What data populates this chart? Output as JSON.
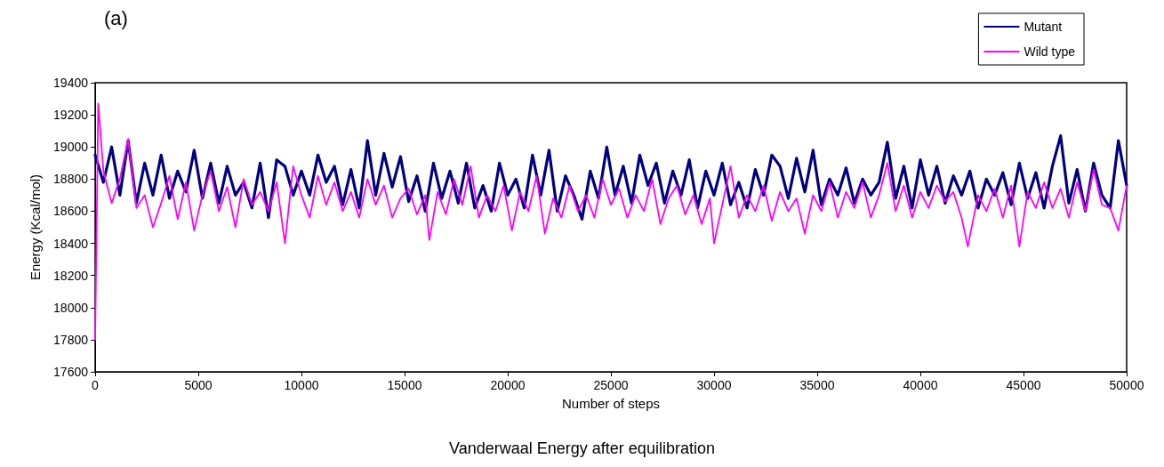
{
  "chart_data": {
    "type": "line",
    "title": "(a)",
    "xlabel": "Number of steps",
    "ylabel": "Energy (Kcal/mol)",
    "annotations": [
      "Vanderwaal Energy after equilibration"
    ],
    "xlim": [
      0,
      50000
    ],
    "xticks": [
      0,
      5000,
      10000,
      15000,
      20000,
      25000,
      30000,
      35000,
      40000,
      45000,
      50000
    ],
    "ylim": [
      17600,
      19400
    ],
    "yticks": [
      17600,
      17800,
      18000,
      18200,
      18400,
      18600,
      18800,
      19000,
      19200,
      19400
    ],
    "grid": false,
    "legend": "top right",
    "marker": "none",
    "line_style": "solid",
    "series": [
      {
        "name": "Mutant",
        "color": "#000080",
        "x": [
          0,
          400,
          800,
          1200,
          1600,
          2000,
          2400,
          2800,
          3200,
          3600,
          4000,
          4400,
          4800,
          5200,
          5600,
          6000,
          6400,
          6800,
          7200,
          7600,
          8000,
          8400,
          8800,
          9200,
          9600,
          10000,
          10400,
          10800,
          11200,
          11600,
          12000,
          12400,
          12800,
          13200,
          13600,
          14000,
          14400,
          14800,
          15200,
          15600,
          16000,
          16400,
          16800,
          17200,
          17600,
          18000,
          18400,
          18800,
          19200,
          19600,
          20000,
          20400,
          20800,
          21200,
          21600,
          22000,
          22400,
          22800,
          23200,
          23600,
          24000,
          24400,
          24800,
          25200,
          25600,
          26000,
          26400,
          26800,
          27200,
          27600,
          28000,
          28400,
          28800,
          29200,
          29600,
          30000,
          30400,
          30800,
          31200,
          31600,
          32000,
          32400,
          32800,
          33200,
          33600,
          34000,
          34400,
          34800,
          35200,
          35600,
          36000,
          36400,
          36800,
          37200,
          37600,
          38000,
          38400,
          38800,
          39200,
          39600,
          40000,
          40400,
          40800,
          41200,
          41600,
          42000,
          42400,
          42800,
          43200,
          43600,
          44000,
          44400,
          44800,
          45200,
          45600,
          46000,
          46400,
          46800,
          47200,
          47600,
          48000,
          48400,
          48800,
          49200,
          49600,
          50000
        ],
        "values": [
          18950,
          18780,
          19000,
          18700,
          19040,
          18650,
          18900,
          18700,
          18950,
          18680,
          18850,
          18720,
          18980,
          18680,
          18900,
          18650,
          18880,
          18700,
          18780,
          18620,
          18900,
          18560,
          18920,
          18880,
          18700,
          18850,
          18700,
          18950,
          18780,
          18880,
          18640,
          18860,
          18620,
          19040,
          18700,
          18960,
          18750,
          18940,
          18660,
          18820,
          18600,
          18900,
          18680,
          18850,
          18650,
          18900,
          18620,
          18760,
          18600,
          18900,
          18700,
          18800,
          18620,
          18950,
          18700,
          18980,
          18600,
          18820,
          18700,
          18550,
          18850,
          18680,
          19000,
          18700,
          18880,
          18650,
          18950,
          18760,
          18900,
          18650,
          18850,
          18700,
          18920,
          18620,
          18850,
          18700,
          18900,
          18640,
          18780,
          18620,
          18860,
          18700,
          18950,
          18880,
          18680,
          18930,
          18720,
          18980,
          18640,
          18800,
          18700,
          18870,
          18650,
          18800,
          18700,
          18780,
          19030,
          18680,
          18880,
          18620,
          18920,
          18700,
          18880,
          18650,
          18820,
          18700,
          18850,
          18620,
          18800,
          18700,
          18840,
          18640,
          18900,
          18680,
          18840,
          18620,
          18880,
          19070,
          18650,
          18860,
          18600,
          18900,
          18700,
          18620,
          19040,
          18760
        ]
      },
      {
        "name": "Wild type",
        "color": "#ff00ff",
        "x": [
          0,
          150,
          400,
          800,
          1200,
          1600,
          2000,
          2400,
          2800,
          3200,
          3600,
          4000,
          4400,
          4800,
          5200,
          5600,
          6000,
          6400,
          6800,
          7200,
          7600,
          8000,
          8400,
          8800,
          9200,
          9600,
          10000,
          10400,
          10800,
          11200,
          11600,
          12000,
          12400,
          12800,
          13200,
          13600,
          14000,
          14400,
          14800,
          15200,
          15600,
          16000,
          16200,
          16600,
          17000,
          17400,
          17800,
          18200,
          18600,
          19000,
          19400,
          19800,
          20200,
          20600,
          21000,
          21400,
          21800,
          22200,
          22600,
          23000,
          23400,
          23800,
          24200,
          24600,
          25000,
          25400,
          25800,
          26200,
          26600,
          27000,
          27400,
          27800,
          28200,
          28600,
          29000,
          29400,
          29800,
          30000,
          30400,
          30800,
          31200,
          31600,
          32000,
          32400,
          32800,
          33200,
          33600,
          34000,
          34400,
          34800,
          35200,
          35600,
          36000,
          36400,
          36800,
          37200,
          37600,
          38000,
          38400,
          38800,
          39200,
          39600,
          40000,
          40400,
          40800,
          41200,
          41600,
          42000,
          42300,
          42800,
          43200,
          43600,
          44000,
          44400,
          44800,
          45200,
          45600,
          46000,
          46400,
          46800,
          47200,
          47600,
          48000,
          48400,
          48800,
          49200,
          49600,
          50000
        ],
        "values": [
          17800,
          19270,
          18850,
          18650,
          18800,
          19050,
          18620,
          18700,
          18500,
          18650,
          18820,
          18550,
          18780,
          18480,
          18700,
          18850,
          18600,
          18750,
          18500,
          18800,
          18640,
          18720,
          18600,
          18780,
          18400,
          18880,
          18700,
          18560,
          18820,
          18640,
          18780,
          18600,
          18720,
          18560,
          18800,
          18640,
          18760,
          18560,
          18680,
          18740,
          18580,
          18700,
          18420,
          18720,
          18580,
          18800,
          18640,
          18880,
          18560,
          18700,
          18600,
          18760,
          18480,
          18720,
          18600,
          18820,
          18460,
          18680,
          18560,
          18760,
          18600,
          18700,
          18560,
          18800,
          18640,
          18740,
          18560,
          18700,
          18600,
          18800,
          18520,
          18680,
          18760,
          18580,
          18700,
          18520,
          18680,
          18400,
          18640,
          18880,
          18560,
          18700,
          18600,
          18760,
          18540,
          18720,
          18600,
          18680,
          18460,
          18700,
          18600,
          18780,
          18560,
          18720,
          18620,
          18780,
          18560,
          18700,
          18900,
          18600,
          18760,
          18560,
          18720,
          18620,
          18760,
          18660,
          18720,
          18560,
          18380,
          18700,
          18600,
          18740,
          18560,
          18760,
          18380,
          18720,
          18620,
          18780,
          18620,
          18740,
          18560,
          18780,
          18600,
          18860,
          18640,
          18620,
          18480,
          18760
        ]
      }
    ]
  }
}
